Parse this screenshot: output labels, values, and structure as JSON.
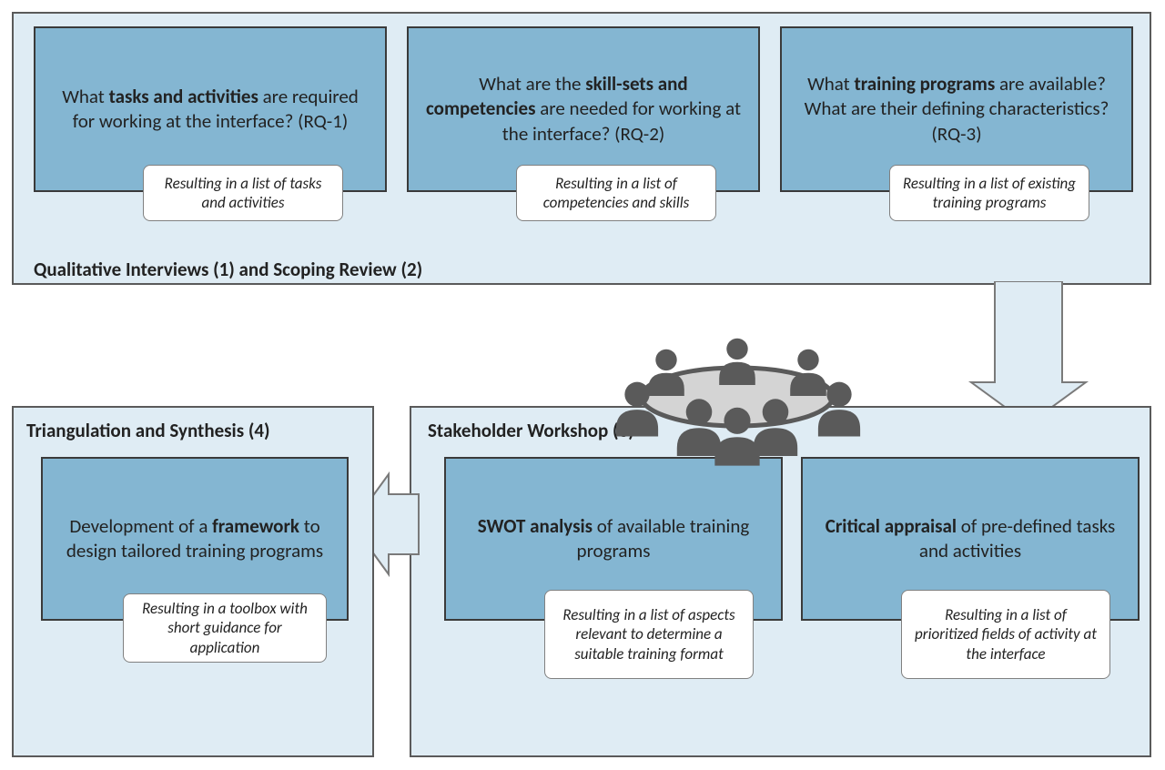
{
  "colors": {
    "panel_bg": "#dfecf4",
    "panel_border": "#5a5a5a",
    "box_bg": "#84b6d2",
    "box_border": "#3a3a3a",
    "result_border": "#808080",
    "text": "#222222",
    "arrow_fill": "#dfecf4",
    "arrow_border": "#7a7a7a",
    "icon_dark": "#5a5a5a",
    "icon_light": "#d4d4d4"
  },
  "fontsizes": {
    "panel_title": 21,
    "box_text": 21,
    "result_text": 17
  },
  "top_panel": {
    "title": "Qualitative Interviews (1) and Scoping Review (2)",
    "boxes": [
      {
        "pre": "What ",
        "bold": "tasks and activities",
        "post": " are required for working at the interface? (RQ-1)",
        "result": "Resulting in a list of tasks and activities"
      },
      {
        "pre": "What are the ",
        "bold": "skill-sets and competencies",
        "post": " are needed for working at the interface? (RQ-2)",
        "result": "Resulting in a list of competencies and skills"
      },
      {
        "pre": "What ",
        "bold": "training programs",
        "post": " are available? What are their defining characteristics?  (RQ-3)",
        "result": "Resulting in a list of existing training programs"
      }
    ]
  },
  "workshop_panel": {
    "title": "Stakeholder Workshop (3)",
    "boxes": [
      {
        "bold": "SWOT analysis",
        "post": " of available training programs",
        "result": "Resulting in a list of aspects relevant to determine a suitable training format"
      },
      {
        "bold": "Critical appraisal",
        "post": " of pre-defined tasks and activities",
        "result": "Resulting in a list of prioritized fields of activity at the interface"
      }
    ]
  },
  "synthesis_panel": {
    "title": "Triangulation and Synthesis (4)",
    "box": {
      "pre": "Development of a ",
      "bold": "framework",
      "post": " to design tailored training programs",
      "result": "Resulting in a toolbox with short guidance for application"
    }
  }
}
